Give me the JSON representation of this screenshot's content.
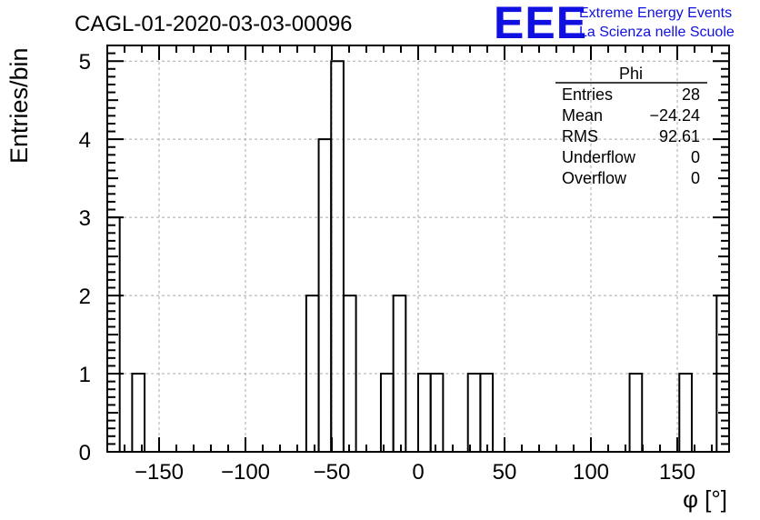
{
  "title": "CAGL-01-2020-03-03-00096",
  "logo": {
    "mark": "EEE",
    "line1": "Extreme Energy Events",
    "line2": "La Scienza nelle Scuole",
    "color": "#1010e0"
  },
  "stats": {
    "name": "Phi",
    "rows": [
      {
        "label": "Entries",
        "value": "28"
      },
      {
        "label": "Mean",
        "value": "−24.24"
      },
      {
        "label": "RMS",
        "value": "92.61"
      },
      {
        "label": "Underflow",
        "value": "0"
      },
      {
        "label": "Overflow",
        "value": "0"
      }
    ]
  },
  "chart_data": {
    "type": "histogram",
    "title": "CAGL-01-2020-03-03-00096",
    "xlabel": "φ [°]",
    "ylabel": "Entries/bin",
    "xlim": [
      -180,
      180
    ],
    "ylim": [
      0,
      5.2
    ],
    "bin_width": 7.2,
    "bin_low_edges": [
      -180,
      -165.6,
      -64.8,
      -57.6,
      -50.4,
      -43.2,
      -21.6,
      -14.4,
      0,
      7.2,
      28.8,
      36,
      122.4,
      151.2,
      172.8
    ],
    "bin_counts": [
      3,
      1,
      2,
      4,
      5,
      2,
      1,
      2,
      1,
      1,
      1,
      1,
      1,
      1,
      2
    ],
    "xticks": [
      -150,
      -100,
      -50,
      0,
      50,
      100,
      150
    ],
    "xtick_labels": [
      "−150",
      "−100",
      "−50",
      "0",
      "50",
      "100",
      "150"
    ],
    "yticks": [
      0,
      1,
      2,
      3,
      4,
      5
    ],
    "ytick_labels": [
      "0",
      "1",
      "2",
      "3",
      "4",
      "5"
    ],
    "grid": true,
    "line_color": "#000000"
  }
}
